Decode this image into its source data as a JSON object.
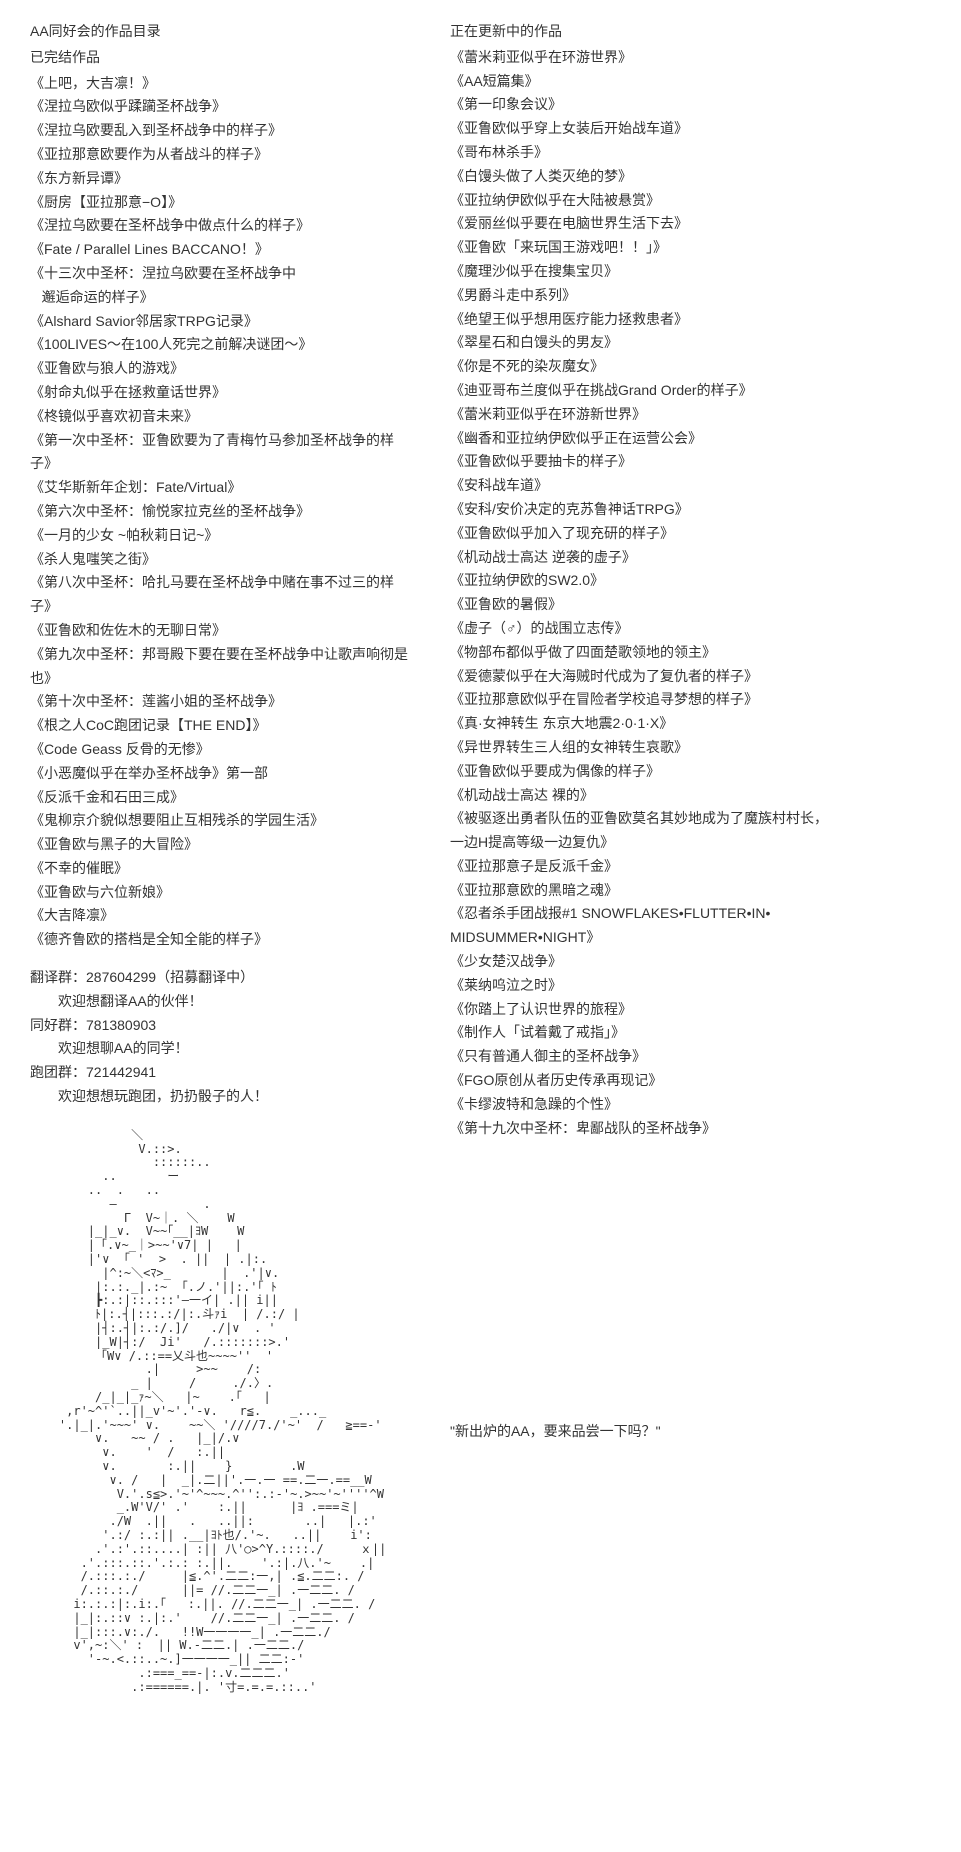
{
  "left": {
    "heading": "AA同好会的作品目录",
    "completed_title": "已完结作品",
    "completed_works": [
      "《上吧，大吉凛！》",
      "《涅拉乌欧似乎蹂躏圣杯战争》",
      "《涅拉乌欧要乱入到圣杯战争中的样子》",
      "《亚拉那意欧要作为从者战斗的样子》",
      "《东方新异谭》",
      "《厨房【亚拉那意−O】》",
      "《涅拉乌欧要在圣杯战争中做点什么的样子》",
      "《Fate / Parallel Lines BACCANO！》",
      "《十三次中圣杯：涅拉乌欧要在圣杯战争中\n   邂逅命运的样子》",
      "《Alshard Savior邻居家TRPG记录》",
      "《100LIVES～在100人死完之前解决谜团～》",
      "《亚鲁欧与狼人的游戏》",
      "《射命丸似乎在拯救童话世界》",
      "《柊镜似乎喜欢初音未来》",
      "《第一次中圣杯：亚鲁欧要为了青梅竹马参加圣杯战争的样子》",
      "《艾华斯新年企划：Fate/Virtual》",
      "《第六次中圣杯：愉悦家拉克丝的圣杯战争》",
      "《一月的少女 ~帕秋莉日记~》",
      "《杀人鬼嗤笑之街》",
      "《第八次中圣杯：哈扎马要在圣杯战争中赌在事不过三的样子》",
      "《亚鲁欧和佐佐木的无聊日常》",
      "《第九次中圣杯：邦哥殿下要在要在圣杯战争中让歌声响彻是也》",
      "《第十次中圣杯：莲酱小姐的圣杯战争》",
      "《根之人CoC跑团记录【THE END】》",
      "《Code Geass 反骨的无惨》",
      "《小恶魔似乎在举办圣杯战争》第一部",
      "《反派千金和石田三成》",
      "《鬼柳京介貌似想要阻止互相残杀的学园生活》",
      "《亚鲁欧与黑子的大冒险》",
      "《不幸的催眠》",
      "《亚鲁欧与六位新娘》",
      "《大吉降凛》",
      "《德齐鲁欧的搭档是全知全能的样子》"
    ],
    "groups": [
      {
        "label": "翻译群：287604299（招募翻译中）",
        "sub": "欢迎想翻译AA的伙伴！"
      },
      {
        "label": "同好群：781380903",
        "sub": "欢迎想聊AA的同学！"
      },
      {
        "label": "跑团群：721442941",
        "sub": "欢迎想想玩跑团，扔扔骰子的人！"
      }
    ]
  },
  "right": {
    "updating_title": "正在更新中的作品",
    "updating_works": [
      "《蕾米莉亚似乎在环游世界》",
      "《AA短篇集》",
      "《第一印象会议》",
      "《亚鲁欧似乎穿上女装后开始战车道》",
      "《哥布林杀手》",
      "《白馒头做了人类灭绝的梦》",
      "《亚拉纳伊欧似乎在大陆被悬赏》",
      "《爱丽丝似乎要在电脑世界生活下去》",
      "《亚鲁欧「来玩国王游戏吧！！」》",
      "《魔理沙似乎在搜集宝贝》",
      "《男爵斗走中系列》",
      "《绝望王似乎想用医疗能力拯救患者》",
      "《翠星石和白馒头的男友》",
      "《你是不死的染灰魔女》",
      "《迪亚哥布兰度似乎在挑战Grand Order的样子》",
      "《蕾米莉亚似乎在环游新世界》",
      "《幽香和亚拉纳伊欧似乎正在运营公会》",
      "《亚鲁欧似乎要抽卡的样子》",
      "《安科战车道》",
      "《安科/安价决定的克苏鲁神话TRPG》",
      "《亚鲁欧似乎加入了现充研的样子》",
      "《机动战士高达 逆袭的虚子》",
      "《亚拉纳伊欧的SW2.0》",
      "《亚鲁欧的暑假》",
      "《虚子（♂）的战围立志传》",
      "《物部布都似乎做了四面楚歌领地的领主》",
      "《爱德蒙似乎在大海贼时代成为了复仇者的样子》",
      "《亚拉那意欧似乎在冒险者学校追寻梦想的样子》",
      "《真·女神转生 东京大地震2·0·1·X》",
      "《异世界转生三人组的女神转生哀歌》",
      "《亚鲁欧似乎要成为偶像的样子》",
      "《机动战士高达 裸的》",
      "《被驱逐出勇者队伍的亚鲁欧莫名其妙地成为了魔族村村长，\n一边H提高等级一边复仇》",
      "《亚拉那意子是反派千金》",
      "《亚拉那意欧的黑暗之魂》",
      "《忍者杀手团战报#1 SNOWFLAKES•FLUTTER•IN•\nMIDSUMMER•NIGHT》",
      "《少女楚汉战争》",
      "《莱纳呜泣之时》",
      "《你踏上了认识世界的旅程》",
      "《制作人「试着戴了戒指」》",
      "《只有普通人御主的圣杯战争》",
      "《FGO原创从者历史传承再现记》",
      "《卡缪波特和急躁的个性》",
      "《第十九次中圣杯：卑鄙战队的圣杯战争》"
    ],
    "quote": "\"新出炉的AA，要来品尝一下吗？\""
  },
  "ascii_art": "              ＼\n               V.::>.\n                 ::::::..\n          ..       ー\n        ..  .   ..\n           ―            .\n             Γ  V~｜. ＼    W\n        |_|_∨.  V~~｢__|ﾖW    W\n        |「.∨~_｜>~~'∨7| |   |\n        |'∨  ｢ '  >  . ||  | .|:.\n          |^:~＼<ﾏ>_       |  .'|∨.\n         |:.:._|.:~  ｢.ノ.'||:.'｢ ﾄ\n         ┣:.:|::.:::'―一イ| .|| i||\n         ﾄ|:.┤|:::.:/|:.斗ｧi  | /.:/ |\n         |┤:.┤|:.:/.]/   ./|∨  . '\n         |_W|┤:/  Ji'   /.:::::::>.'\n         「W∨ /.::==乂斗也~~~~''  '\n                .|     >~~    /:\n              _ |     /     ./.〉.\n         /_|_|_ｧ~＼   |~    .｢   |\n     ,r'~^'`..||_v'~'.'-∨.   r≦.    _..._\n    '.|_|.'~~~' ∨.    ~~＼ '////7./'~'  /   ≧==-'\n         ∨.   ~~ / .   |_|/.∨\n          ∨.    '  /   :.||\n          ∨.       :.||    }        .W\n           ∨. /   |  _|.二||'.一.一 ==.二一.==__W\n            V.'.s≦>.'~'^~~~.^'':.:-'~.>~~'~''''^W\n            _.W'V/' .'    :.||      |ﾖ .===ミ|\n           ./W  .||   .   ..||:       ..|   |.:'\n          '.:/ :.:|| .__|ﾖﾄ也/.'~.   ..||    i':\n         .'.:'.::....| :|| 八'○>^Y.::::./     ｘ||\n       .'.:::.::.'.:.: :.||.    '.:|.八.'~    .|\n       /.:::.:./     |≦.^'.二二:一,| .≦.二二:. /\n       /.::.:./      ||= //.二二一_| .一二二. /\n      i:.:.:|:.i:.｢   :.||. //.二二一_| .一二二. /\n      |_|:.::∨ :.|:.'    //.二二一_| .一二二. /\n      |_|:::.∨:./.   !!W一一一一_| .一二二./\n      v',~:＼' :  || W.-二二.| .一二二./\n        '-~.<.::..~.]一一一一_|| 二二:-'\n               .:===_==-|:.v.二二二.'\n              .:======.|. '寸=.=.=.::..'"
}
